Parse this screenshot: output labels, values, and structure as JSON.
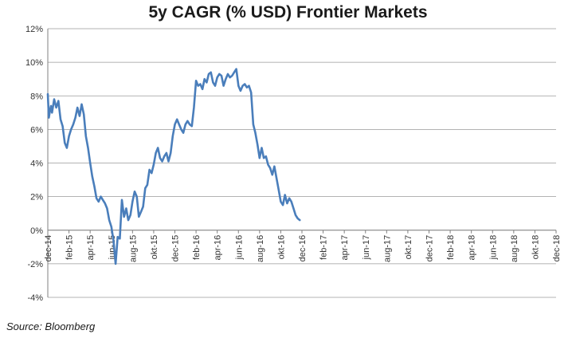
{
  "source": "Source: Bloomberg",
  "chart_data": {
    "type": "line",
    "title": "5y CAGR (% USD) Frontier Markets",
    "xlabel": "",
    "ylabel": "",
    "ylim": [
      -4,
      12
    ],
    "y_ticks": [
      "12%",
      "10%",
      "8%",
      "6%",
      "4%",
      "2%",
      "0%",
      "-2%",
      "-4%"
    ],
    "y_tick_values": [
      12,
      10,
      8,
      6,
      4,
      2,
      0,
      -2,
      -4
    ],
    "x_ticks": [
      "dec-14",
      "feb-15",
      "apr-15",
      "jun-15",
      "aug-15",
      "okt-15",
      "dec-15",
      "feb-16",
      "apr-16",
      "jun-16",
      "aug-16",
      "okt-16",
      "dec-16",
      "feb-17",
      "apr-17",
      "jun-17",
      "aug-17",
      "okt-17",
      "dec-17",
      "feb-18",
      "apr-18",
      "jun-18",
      "aug-18",
      "okt-18",
      "dec-18"
    ],
    "grid": true,
    "line_color": "#4a7ebb",
    "series": [
      {
        "x_month_index": [
          0.0,
          0.1,
          0.2,
          0.3,
          0.4,
          0.6,
          0.8,
          1.0,
          1.2,
          1.4,
          1.6,
          1.8,
          2.0,
          2.2,
          2.4,
          2.6,
          2.8,
          3.0,
          3.2,
          3.4,
          3.6,
          3.8,
          4.0,
          4.2,
          4.4,
          4.6,
          4.8,
          5.0,
          5.2,
          5.4,
          5.6,
          5.8,
          6.0,
          6.2,
          6.4,
          6.6,
          6.8,
          7.0,
          7.2,
          7.4,
          7.6,
          7.8,
          8.0,
          8.2,
          8.4,
          8.6,
          8.8,
          9.0,
          9.2,
          9.4,
          9.6,
          9.8,
          10.0,
          10.2,
          10.4,
          10.6,
          10.8,
          11.0,
          11.2,
          11.4,
          11.6,
          11.8,
          12.0,
          12.2,
          12.4,
          12.6,
          12.8,
          13.0,
          13.2,
          13.4,
          13.6,
          13.8,
          14.0,
          14.2,
          14.4,
          14.6,
          14.8,
          15.0,
          15.2,
          15.4,
          15.6,
          15.8,
          16.0,
          16.2,
          16.4,
          16.6,
          16.8,
          17.0,
          17.2,
          17.4,
          17.6,
          17.8,
          18.0,
          18.2,
          18.4,
          18.6,
          18.8,
          19.0,
          19.2,
          19.4,
          19.6,
          19.8,
          20.0,
          20.2,
          20.4,
          20.6,
          20.8,
          21.0,
          21.2,
          21.4,
          21.6,
          21.8,
          22.0,
          22.2,
          22.4,
          22.6,
          22.8,
          23.0,
          23.2,
          23.4,
          23.6,
          23.8,
          24.0,
          24.2
        ],
        "values": [
          8.1,
          6.7,
          7.1,
          7.4,
          7.0,
          7.8,
          7.3,
          7.7,
          6.6,
          6.2,
          5.2,
          4.9,
          5.6,
          6.0,
          6.3,
          6.7,
          7.3,
          6.8,
          7.5,
          6.9,
          5.6,
          4.9,
          4.0,
          3.2,
          2.6,
          1.9,
          1.7,
          2.0,
          1.8,
          1.6,
          1.3,
          0.6,
          0.2,
          -0.6,
          -2.0,
          -0.4,
          -0.5,
          1.8,
          0.8,
          1.3,
          0.6,
          0.9,
          1.7,
          2.3,
          2.0,
          0.8,
          1.1,
          1.4,
          2.5,
          2.7,
          3.6,
          3.4,
          3.9,
          4.6,
          4.9,
          4.3,
          4.1,
          4.4,
          4.6,
          4.1,
          4.6,
          5.6,
          6.3,
          6.6,
          6.3,
          6.0,
          5.8,
          6.3,
          6.5,
          6.3,
          6.2,
          7.3,
          8.9,
          8.6,
          8.7,
          8.4,
          9.0,
          8.8,
          9.3,
          9.4,
          8.8,
          8.6,
          9.1,
          9.3,
          9.2,
          8.6,
          9.0,
          9.3,
          9.1,
          9.2,
          9.4,
          9.6,
          8.6,
          8.3,
          8.6,
          8.7,
          8.5,
          8.6,
          8.2,
          6.3,
          5.8,
          5.1,
          4.3,
          4.9,
          4.3,
          4.4,
          3.9,
          3.7,
          3.3,
          3.8,
          3.1,
          2.4,
          1.7,
          1.5,
          2.1,
          1.6,
          1.9,
          1.7,
          1.3,
          0.9,
          0.7,
          0.6
        ]
      }
    ]
  }
}
